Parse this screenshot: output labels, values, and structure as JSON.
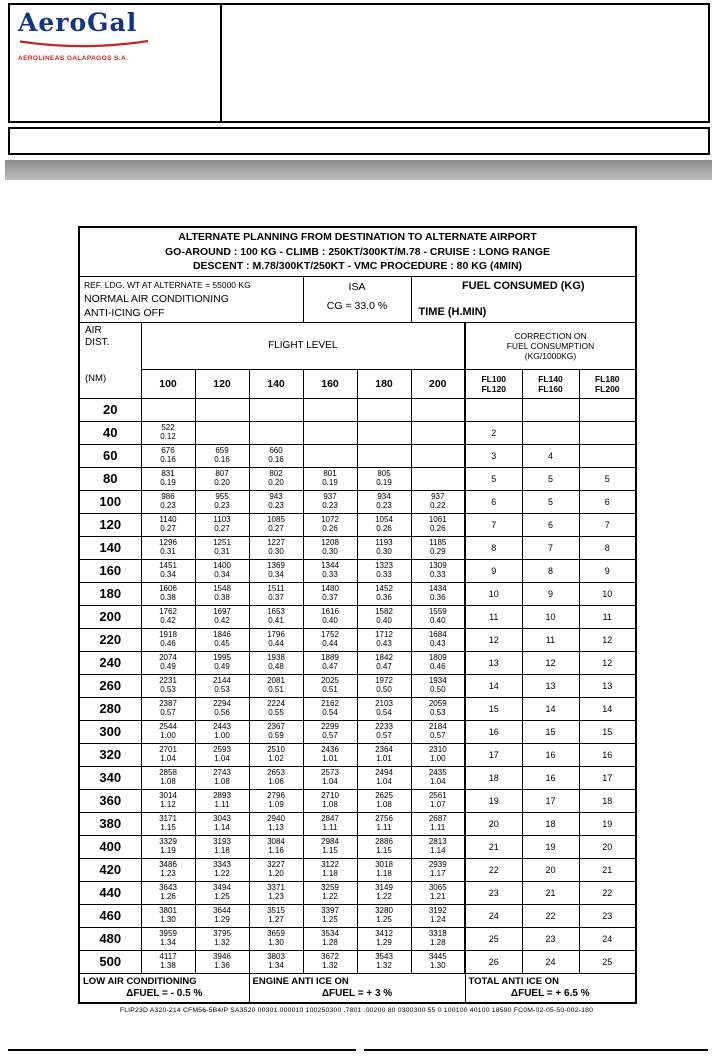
{
  "logo": {
    "brand": "AeroGal",
    "sub": "AEROLINEAS GALAPAGOS S.A.",
    "brand_color": "#16357f",
    "accent_color": "#c4271f"
  },
  "table": {
    "title_lines": [
      "ALTERNATE PLANNING FROM DESTINATION TO ALTERNATE AIRPORT",
      "GO-AROUND : 100 KG - CLIMB : 250KT/300KT/M.78 - CRUISE : LONG RANGE",
      "DESCENT : M.78/300KT/250KT - VMC PROCEDURE : 80 KG (4MIN)"
    ],
    "conditions": {
      "ref": "REF. LDG. WT AT ALTERNATE = 55000 KG",
      "ac": "NORMAL AIR CONDITIONING",
      "antiice": "ANTI-ICING OFF",
      "isa": "ISA",
      "cg": "CG = 33.0 %",
      "fuel_label": "FUEL CONSUMED (KG)",
      "time_label": "TIME (H.MIN)"
    },
    "headers": {
      "air": [
        "AIR",
        "DIST.",
        "(NM)"
      ],
      "flight_level": "FLIGHT LEVEL",
      "fl_numbers": [
        "100",
        "120",
        "140",
        "160",
        "180",
        "200"
      ],
      "correction": [
        "CORRECTION ON",
        "FUEL CONSUMPTION",
        "(KG/1000KG)"
      ],
      "corr_cols": [
        [
          "FL100",
          "FL120"
        ],
        [
          "FL140",
          "FL160"
        ],
        [
          "FL180",
          "FL200"
        ]
      ]
    },
    "rows": [
      {
        "dist": "20",
        "fl": [
          null,
          null,
          null,
          null,
          null,
          null
        ],
        "corr": [
          "",
          "",
          ""
        ]
      },
      {
        "dist": "40",
        "fl": [
          [
            "522",
            "0.12"
          ],
          null,
          null,
          null,
          null,
          null
        ],
        "corr": [
          "2",
          "",
          ""
        ]
      },
      {
        "dist": "60",
        "fl": [
          [
            "676",
            "0.16"
          ],
          [
            "659",
            "0.16"
          ],
          [
            "660",
            "0.16"
          ],
          null,
          null,
          null
        ],
        "corr": [
          "3",
          "4",
          ""
        ]
      },
      {
        "dist": "80",
        "fl": [
          [
            "831",
            "0.19"
          ],
          [
            "807",
            "0.20"
          ],
          [
            "802",
            "0.20"
          ],
          [
            "801",
            "0.19"
          ],
          [
            "805",
            "0.19"
          ],
          null
        ],
        "corr": [
          "5",
          "5",
          "5"
        ]
      },
      {
        "dist": "100",
        "fl": [
          [
            "986",
            "0.23"
          ],
          [
            "955",
            "0.23"
          ],
          [
            "943",
            "0.23"
          ],
          [
            "937",
            "0.23"
          ],
          [
            "934",
            "0.23"
          ],
          [
            "937",
            "0.22"
          ]
        ],
        "corr": [
          "6",
          "5",
          "6"
        ]
      },
      {
        "dist": "120",
        "fl": [
          [
            "1140",
            "0.27"
          ],
          [
            "1103",
            "0.27"
          ],
          [
            "1085",
            "0.27"
          ],
          [
            "1072",
            "0.26"
          ],
          [
            "1054",
            "0.26"
          ],
          [
            "1061",
            "0.26"
          ]
        ],
        "corr": [
          "7",
          "6",
          "7"
        ]
      },
      {
        "dist": "140",
        "fl": [
          [
            "1296",
            "0.31"
          ],
          [
            "1251",
            "0.31"
          ],
          [
            "1227",
            "0.30"
          ],
          [
            "1208",
            "0.30"
          ],
          [
            "1193",
            "0.30"
          ],
          [
            "1185",
            "0.29"
          ]
        ],
        "corr": [
          "8",
          "7",
          "8"
        ]
      },
      {
        "dist": "160",
        "fl": [
          [
            "1451",
            "0.34"
          ],
          [
            "1400",
            "0.34"
          ],
          [
            "1369",
            "0.34"
          ],
          [
            "1344",
            "0.33"
          ],
          [
            "1323",
            "0.33"
          ],
          [
            "1309",
            "0.33"
          ]
        ],
        "corr": [
          "9",
          "8",
          "9"
        ]
      },
      {
        "dist": "180",
        "fl": [
          [
            "1606",
            "0.38"
          ],
          [
            "1548",
            "0.38"
          ],
          [
            "1511",
            "0.37"
          ],
          [
            "1480",
            "0.37"
          ],
          [
            "1452",
            "0.36"
          ],
          [
            "1434",
            "0.36"
          ]
        ],
        "corr": [
          "10",
          "9",
          "10"
        ]
      },
      {
        "dist": "200",
        "fl": [
          [
            "1762",
            "0.42"
          ],
          [
            "1697",
            "0.42"
          ],
          [
            "1653",
            "0.41"
          ],
          [
            "1616",
            "0.40"
          ],
          [
            "1582",
            "0.40"
          ],
          [
            "1559",
            "0.40"
          ]
        ],
        "corr": [
          "11",
          "10",
          "11"
        ]
      },
      {
        "dist": "220",
        "fl": [
          [
            "1918",
            "0.46"
          ],
          [
            "1846",
            "0.45"
          ],
          [
            "1796",
            "0.44"
          ],
          [
            "1752",
            "0.44"
          ],
          [
            "1712",
            "0.43"
          ],
          [
            "1684",
            "0.43"
          ]
        ],
        "corr": [
          "12",
          "11",
          "12"
        ]
      },
      {
        "dist": "240",
        "fl": [
          [
            "2074",
            "0.49"
          ],
          [
            "1995",
            "0.49"
          ],
          [
            "1938",
            "0.48"
          ],
          [
            "1889",
            "0.47"
          ],
          [
            "1842",
            "0.47"
          ],
          [
            "1809",
            "0.46"
          ]
        ],
        "corr": [
          "13",
          "12",
          "12"
        ]
      },
      {
        "dist": "260",
        "fl": [
          [
            "2231",
            "0.53"
          ],
          [
            "2144",
            "0.53"
          ],
          [
            "2081",
            "0.51"
          ],
          [
            "2025",
            "0.51"
          ],
          [
            "1972",
            "0.50"
          ],
          [
            "1934",
            "0.50"
          ]
        ],
        "corr": [
          "14",
          "13",
          "13"
        ]
      },
      {
        "dist": "280",
        "fl": [
          [
            "2387",
            "0.57"
          ],
          [
            "2294",
            "0.56"
          ],
          [
            "2224",
            "0.55"
          ],
          [
            "2162",
            "0.54"
          ],
          [
            "2103",
            "0.54"
          ],
          [
            "2059",
            "0.53"
          ]
        ],
        "corr": [
          "15",
          "14",
          "14"
        ]
      },
      {
        "dist": "300",
        "fl": [
          [
            "2544",
            "1.00"
          ],
          [
            "2443",
            "1.00"
          ],
          [
            "2367",
            "0.59"
          ],
          [
            "2299",
            "0.57"
          ],
          [
            "2233",
            "0.57"
          ],
          [
            "2184",
            "0.57"
          ]
        ],
        "corr": [
          "16",
          "15",
          "15"
        ]
      },
      {
        "dist": "320",
        "fl": [
          [
            "2701",
            "1.04"
          ],
          [
            "2593",
            "1.04"
          ],
          [
            "2510",
            "1.02"
          ],
          [
            "2436",
            "1.01"
          ],
          [
            "2364",
            "1.01"
          ],
          [
            "2310",
            "1.00"
          ]
        ],
        "corr": [
          "17",
          "16",
          "16"
        ]
      },
      {
        "dist": "340",
        "fl": [
          [
            "2858",
            "1.08"
          ],
          [
            "2743",
            "1.08"
          ],
          [
            "2653",
            "1.06"
          ],
          [
            "2573",
            "1.04"
          ],
          [
            "2494",
            "1.04"
          ],
          [
            "2435",
            "1.04"
          ]
        ],
        "corr": [
          "18",
          "16",
          "17"
        ]
      },
      {
        "dist": "360",
        "fl": [
          [
            "3014",
            "1.12"
          ],
          [
            "2893",
            "1.11"
          ],
          [
            "2796",
            "1.09"
          ],
          [
            "2710",
            "1.08"
          ],
          [
            "2625",
            "1.08"
          ],
          [
            "2561",
            "1.07"
          ]
        ],
        "corr": [
          "19",
          "17",
          "18"
        ]
      },
      {
        "dist": "380",
        "fl": [
          [
            "3171",
            "1.15"
          ],
          [
            "3043",
            "1.14"
          ],
          [
            "2940",
            "1.13"
          ],
          [
            "2847",
            "1.11"
          ],
          [
            "2756",
            "1.11"
          ],
          [
            "2687",
            "1.11"
          ]
        ],
        "corr": [
          "20",
          "18",
          "19"
        ]
      },
      {
        "dist": "400",
        "fl": [
          [
            "3329",
            "1.19"
          ],
          [
            "3193",
            "1.18"
          ],
          [
            "3084",
            "1.16"
          ],
          [
            "2984",
            "1.15"
          ],
          [
            "2886",
            "1.15"
          ],
          [
            "2813",
            "1.14"
          ]
        ],
        "corr": [
          "21",
          "19",
          "20"
        ]
      },
      {
        "dist": "420",
        "fl": [
          [
            "3486",
            "1.23"
          ],
          [
            "3343",
            "1.22"
          ],
          [
            "3227",
            "1.20"
          ],
          [
            "3122",
            "1.18"
          ],
          [
            "3018",
            "1.18"
          ],
          [
            "2939",
            "1.17"
          ]
        ],
        "corr": [
          "22",
          "20",
          "21"
        ]
      },
      {
        "dist": "440",
        "fl": [
          [
            "3643",
            "1.26"
          ],
          [
            "3494",
            "1.25"
          ],
          [
            "3371",
            "1.23"
          ],
          [
            "3259",
            "1.22"
          ],
          [
            "3149",
            "1.22"
          ],
          [
            "3065",
            "1.21"
          ]
        ],
        "corr": [
          "23",
          "21",
          "22"
        ]
      },
      {
        "dist": "460",
        "fl": [
          [
            "3801",
            "1.30"
          ],
          [
            "3644",
            "1.29"
          ],
          [
            "3515",
            "1.27"
          ],
          [
            "3397",
            "1.25"
          ],
          [
            "3280",
            "1.25"
          ],
          [
            "3192",
            "1.24"
          ]
        ],
        "corr": [
          "24",
          "22",
          "23"
        ]
      },
      {
        "dist": "480",
        "fl": [
          [
            "3959",
            "1.34"
          ],
          [
            "3795",
            "1.32"
          ],
          [
            "3659",
            "1.30"
          ],
          [
            "3534",
            "1.28"
          ],
          [
            "3412",
            "1.29"
          ],
          [
            "3318",
            "1.28"
          ]
        ],
        "corr": [
          "25",
          "23",
          "24"
        ]
      },
      {
        "dist": "500",
        "fl": [
          [
            "4117",
            "1.38"
          ],
          [
            "3946",
            "1.36"
          ],
          [
            "3803",
            "1.34"
          ],
          [
            "3672",
            "1.32"
          ],
          [
            "3543",
            "1.32"
          ],
          [
            "3445",
            "1.30"
          ]
        ],
        "corr": [
          "26",
          "24",
          "25"
        ]
      }
    ],
    "notes": [
      {
        "line1": "LOW AIR CONDITIONING",
        "line2": "ΔFUEL = - 0.5 %"
      },
      {
        "line1": "ENGINE ANTI ICE ON",
        "line2": "ΔFUEL = + 3 %"
      },
      {
        "line1": "TOTAL ANTI ICE ON",
        "line2": "ΔFUEL = + 6.5 %"
      }
    ],
    "footer_code": "FLIP23D A320-214 CFM56-5B4/P SA3520 00301.000010 100250300 .7801 .00200 80 0300300 55 0 100100 40100 18590 FC0M-02-05-50-002-180"
  }
}
